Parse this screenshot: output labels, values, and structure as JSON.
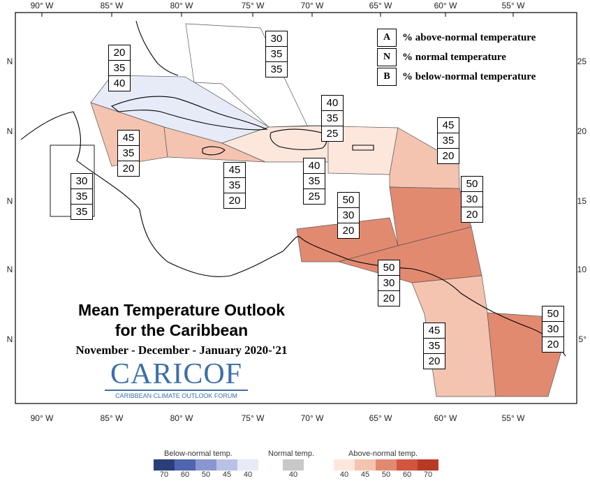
{
  "lon_labels": [
    "90° W",
    "85° W",
    "80° W",
    "75° W",
    "70° W",
    "65° W",
    "60° W",
    "55° W"
  ],
  "lat_labels_left": [
    "N",
    "N",
    "N",
    "N",
    "N"
  ],
  "lat_labels_right": [
    "25",
    "20",
    "15",
    "10",
    "5°"
  ],
  "legend": [
    {
      "key": "A",
      "text": "% above-normal temperature"
    },
    {
      "key": "N",
      "text": "% normal temperature"
    },
    {
      "key": "B",
      "text": "% below-normal temperature"
    }
  ],
  "regions": [
    {
      "id": "bahamas",
      "color": "#ffffff",
      "A": "30",
      "N": "35",
      "B": "35"
    },
    {
      "id": "cuba",
      "color": "#e6ebf7",
      "A": "20",
      "N": "35",
      "B": "40"
    },
    {
      "id": "cayman",
      "color": "#f4c4b0",
      "A": "45",
      "N": "35",
      "B": "20"
    },
    {
      "id": "belize",
      "color": "#ffffff",
      "A": "30",
      "N": "35",
      "B": "35"
    },
    {
      "id": "jamaica",
      "color": "#f4c4b0",
      "A": "45",
      "N": "35",
      "B": "20"
    },
    {
      "id": "hispaniola",
      "color": "#fde7dd",
      "A": "40",
      "N": "35",
      "B": "25"
    },
    {
      "id": "puerto-rico",
      "color": "#fde7dd",
      "A": "40",
      "N": "35",
      "B": "25"
    },
    {
      "id": "leeward",
      "color": "#f4c4b0",
      "A": "45",
      "N": "35",
      "B": "20"
    },
    {
      "id": "windward",
      "color": "#e28a70",
      "A": "50",
      "N": "30",
      "B": "20"
    },
    {
      "id": "abc-islands",
      "color": "#e28a70",
      "A": "50",
      "N": "30",
      "B": "20"
    },
    {
      "id": "trinidad",
      "color": "#e28a70",
      "A": "50",
      "N": "30",
      "B": "20"
    },
    {
      "id": "guyana",
      "color": "#f4c4b0",
      "A": "45",
      "N": "35",
      "B": "20"
    },
    {
      "id": "suriname",
      "color": "#e28a70",
      "A": "50",
      "N": "30",
      "B": "20"
    }
  ],
  "title": {
    "line1": "Mean Temperature Outlook",
    "line2": "for the Caribbean",
    "period": "November - December - January 2020-'21"
  },
  "logo": {
    "word": "CARICOF",
    "sub": "CARIBBEAN CLIMATE OUTLOOK FORUM"
  },
  "color_scale": {
    "below": {
      "title": "Below-normal temp.",
      "colors": [
        "#2a3f7a",
        "#4f65b0",
        "#8a96cf",
        "#b9c2e6",
        "#e6ebf7"
      ],
      "ticks": [
        "70",
        "60",
        "50",
        "45",
        "40"
      ]
    },
    "normal": {
      "title": "Normal temp.",
      "colors": [
        "#c8c8c8"
      ],
      "ticks": [
        "40"
      ]
    },
    "above": {
      "title": "Above-normal temp.",
      "colors": [
        "#fde7dd",
        "#f4c4b0",
        "#e28a70",
        "#d2563f",
        "#b83a26"
      ],
      "ticks": [
        "40",
        "45",
        "50",
        "60",
        "70"
      ]
    }
  }
}
